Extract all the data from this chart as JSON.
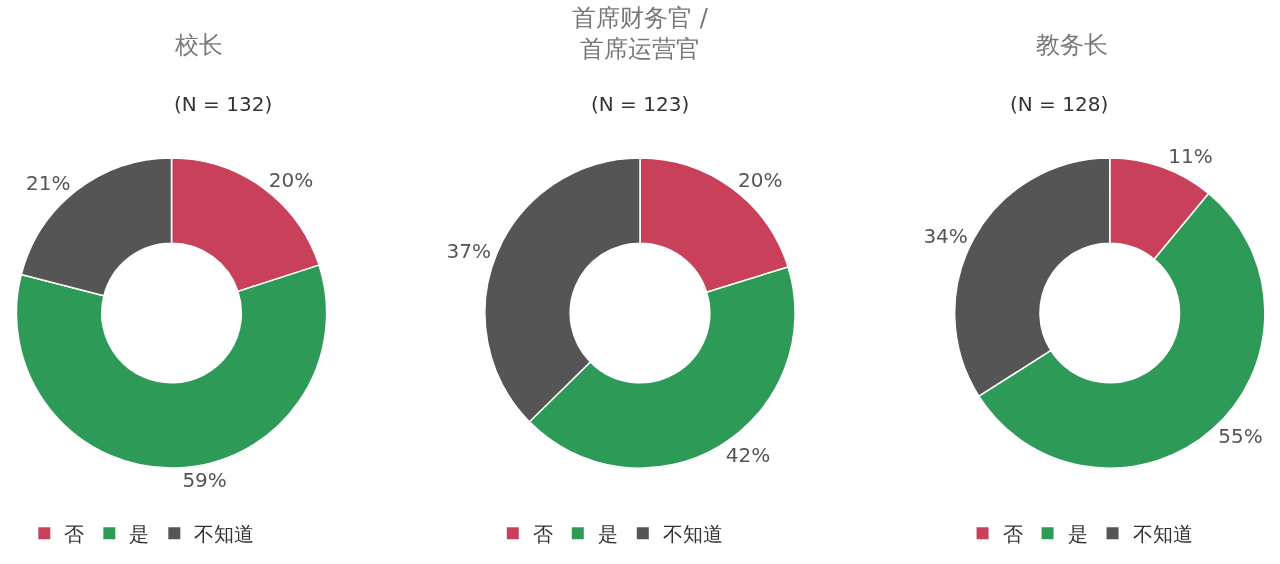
{
  "chart_data": [
    {
      "type": "donut",
      "title": "校长",
      "subtitle": "(N = 132)",
      "categories": [
        "否",
        "是",
        "不知道"
      ],
      "values": [
        20,
        59,
        21
      ],
      "value_labels": [
        "20%",
        "59%",
        "21%"
      ],
      "colors": [
        "#c8405a",
        "#2e9a57",
        "#555555"
      ],
      "legend": "bottom"
    },
    {
      "type": "donut",
      "title": "首席财务官 /\n首席运营官",
      "subtitle": "(N = 123)",
      "categories": [
        "否",
        "是",
        "不知道"
      ],
      "values": [
        20,
        42,
        37
      ],
      "value_labels": [
        "20%",
        "42%",
        "37%"
      ],
      "colors": [
        "#c8405a",
        "#2e9a57",
        "#555555"
      ],
      "legend": "bottom"
    },
    {
      "type": "donut",
      "title": "教务长",
      "subtitle": "(N = 128)",
      "categories": [
        "否",
        "是",
        "不知道"
      ],
      "values": [
        11,
        55,
        34
      ],
      "value_labels": [
        "11%",
        "55%",
        "34%"
      ],
      "colors": [
        "#c8405a",
        "#2e9a57",
        "#555555"
      ],
      "legend": "bottom"
    }
  ]
}
